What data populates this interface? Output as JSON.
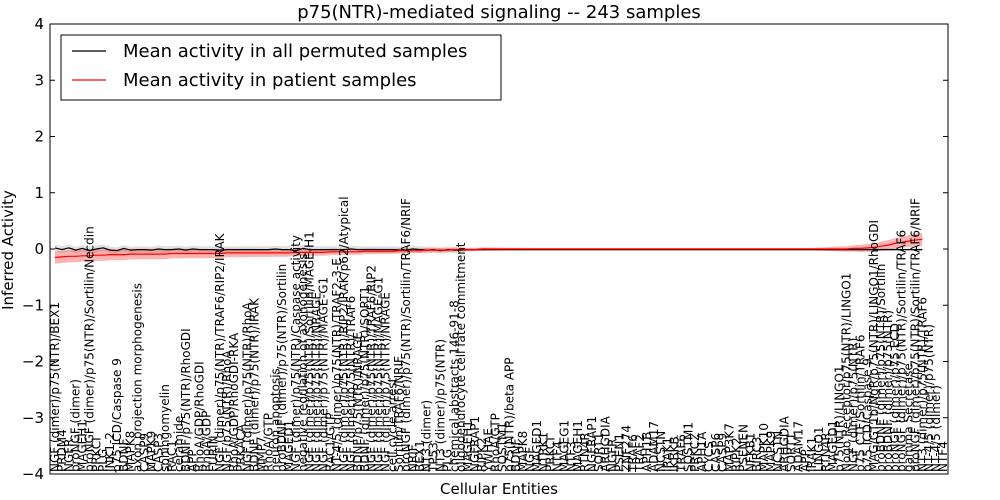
{
  "chart_data": {
    "type": "line",
    "title": "p75(NTR)-mediated signaling -- 243 samples",
    "xlabel": "Cellular Entities",
    "ylabel": "Inferred Activity",
    "ylim": [
      -4,
      4
    ],
    "yticks": [
      "−4",
      "−3",
      "−2",
      "−1",
      "0",
      "1",
      "2",
      "3",
      "4"
    ],
    "grid": false,
    "legend": {
      "placement": "top-left",
      "entries": [
        {
          "label": "Mean activity in all permuted samples",
          "color": "#000000"
        },
        {
          "label": "Mean activity in patient samples",
          "color": "#ff0000"
        }
      ]
    },
    "colors": {
      "permuted": "#000000",
      "patient": "#ff0000",
      "patient_band": "#ff0000",
      "permuted_band": "#9a9a9a"
    },
    "categories": [
      "NGF (dimer)/p75(NTR)/BEX1",
      "PRDM4",
      "NGFR",
      "proNGF (dimer)",
      "MAGEH1",
      "proNGF (dimer)/p75(NTR)/Sortilin/Necdin",
      "PRKCI",
      "PLG",
      "JNK1-2",
      "p75 ICD/Caspase 9",
      "BDNF",
      "MAPK8",
      "axon projection morphogenesis",
      "CASP9",
      "MAPK9",
      "CASP3",
      "sphingomyelin",
      "RAC1",
      "ceramide",
      "BDNF/p75(NTR)/RhoGDI",
      "APP",
      "RhoA/GDP/RhoGDI",
      "RhoA/GDP",
      "FURIN",
      "NGF (dimer)/p75(NTR)/TRAF6/RIP2/IRAK",
      "NGF/p75(NTR)/RhoA",
      "RhoA/GDP/RhoGDI-RKA",
      "PRKACA",
      "NGF (dimer)/p75(NTR)/RhoA",
      "BDNF (dimer)/p75(NTR)/IRAK",
      "MMP7",
      "RhoA/GTP",
      "neuron apoptosis",
      "proBDNF (dimer)/p75(NTR)/Sortilin",
      "MAGED1",
      "NGF (dimer)/p75(NTR)/Caspase activity",
      "negative regulation of axonogenesis",
      "NGF (dimer)/p75(NTR)/Sortilin/MAGE-H1",
      "NGF (dimer)/p75(NTR)/NRAGE",
      "NGF (dimer)/p75(NTR)/MAGE-G1",
      "RAC1/GTP",
      "NT-4/5 (dimer)/p75(NTR)/TRAF2-3-E",
      "NGF (dimer)/p75(NTR)/RIP2/IRAK/p62/Atypical",
      "NGF (dimer)/p75(NTR)/TRAF6",
      "BDNF/p75(NTR)/NRAGE",
      "BDNF (dimer)/p75(NTR)/SORT1",
      "NGF (dimer)/p75(NTR)/TRAF6/RIP2",
      "NGF (dimer)/p75(NTR)/MAGE-G1",
      "NGF (dimer)/p75(NTR)/NRAGE",
      "cell cycle arrest",
      "Sortilin/TRAF6/NRIF",
      "proNGF (dimer)/p75(NTR)/Sortilin/TRAF6/NRIF",
      "NRIF",
      "BEX1",
      "NT3 (dimer)",
      "TP53",
      "NT3 (dimer)/p75(NTR)",
      "PLG",
      "chemical abstracts 146-91-8",
      "oligodendrocyte cell fate commitment",
      "MAGEH1",
      "NGFRAP1",
      "RIPK2",
      "YWHAE",
      "RhoA/GTP",
      "SQSTM1",
      "p75(NTR)/beta APP",
      "BDNF",
      "MAPK8",
      "NGF",
      "MAGED1",
      "NTRK1",
      "PRKCI",
      "NTF4",
      "MAGEG1",
      "NTF3",
      "MAGEH1",
      "RTN4R",
      "NGFRAP1",
      "SORT1",
      "ARHGDIA",
      "NGFR",
      "PSEN1",
      "ZNF274",
      "TRAF6",
      "TRAF2",
      "APH1B",
      "ADAM17",
      "NCSTN",
      "IRAK1",
      "IKBKB",
      "TRAF6",
      "SQSTM1",
      "PRKCZ",
      "APH1A",
      "CYCS",
      "CASP6",
      "CASP9",
      "MAP3K7",
      "RIPK2",
      "PSENEN",
      "NFKB1",
      "BIRC3",
      "MAPK10",
      "MAPK9",
      "NCSTN",
      "ARHGDIA",
      "SORT1",
      "ADAM17",
      "APP",
      "IRAK1",
      "LINGO1",
      "RTN4R",
      "MAGED1",
      "p75(NTR)/LINGO1",
      "Nogo Receptor/p75(NTR)/LINGO1",
      "NGF (dimer)/p75(NTR)",
      "p75 CTF/Sortilin/TRAF6",
      "p75 ICD/Caspase 9",
      "MAG/GT1b/NgR/p75(NTR)/LINGO1/RhoGDI",
      "proBDNF (dimer)/p75(NTR)/Sortilin",
      "proBDNF (dimer)/p75(NTR)",
      "proNGF (dimer)/p75 ECD",
      "proNGF (dimer)/p75(NTR)/Sortilin/TRAF6",
      "gamma Secretase",
      "proNGF (dimer)/p75(NTR)/Sortilin/TRAF6/NRIF",
      "NT3 (dimer)/p75(NTR)/TRAF6",
      "NT-4/5 (dimer)/p75(NTR)",
      "NT-4/5 (dimer)",
      "NTF4"
    ],
    "permuted_mean": [
      0.02,
      -0.01,
      0.02,
      -0.02,
      0.01,
      -0.03,
      0.0,
      0.02,
      -0.02,
      -0.03,
      0.01,
      -0.02,
      -0.01,
      -0.01,
      -0.02,
      0.0,
      -0.01,
      -0.01,
      0.0,
      -0.02,
      0.0,
      -0.01,
      -0.01,
      -0.01,
      -0.02,
      -0.01,
      -0.01,
      -0.01,
      -0.01,
      -0.01,
      -0.01,
      -0.01,
      0.0,
      -0.01,
      -0.01,
      -0.03,
      0.01,
      -0.01,
      -0.01,
      -0.01,
      -0.01,
      -0.01,
      -0.01,
      0.0,
      -0.01,
      -0.01,
      -0.01,
      -0.01,
      -0.01,
      -0.01,
      -0.02,
      -0.02,
      0.0,
      -0.01,
      -0.02,
      -0.01,
      -0.03,
      -0.01,
      -0.02,
      -0.02,
      -0.01,
      -0.01,
      -0.01,
      -0.01,
      -0.01,
      -0.01,
      -0.01,
      -0.01,
      -0.01,
      -0.01,
      -0.01,
      -0.01,
      -0.01,
      -0.01,
      -0.01,
      -0.01,
      -0.01,
      -0.01,
      -0.01,
      -0.01,
      -0.01,
      -0.01,
      -0.01,
      -0.01,
      -0.01,
      -0.01,
      -0.01,
      -0.01,
      -0.01,
      -0.01,
      -0.01,
      -0.01,
      -0.01,
      -0.01,
      -0.01,
      -0.01,
      -0.01,
      -0.01,
      -0.01,
      -0.01,
      -0.01,
      -0.01,
      -0.01,
      -0.01,
      -0.01,
      -0.01,
      -0.01,
      -0.01,
      -0.01,
      -0.01,
      -0.01,
      -0.01,
      -0.01,
      -0.01,
      -0.01,
      -0.01,
      -0.01,
      -0.01,
      -0.01,
      -0.01,
      -0.01,
      -0.01,
      -0.01,
      -0.01,
      -0.01,
      -0.01,
      -0.01
    ],
    "patient_mean": [
      -0.15,
      -0.14,
      -0.13,
      -0.13,
      -0.12,
      -0.12,
      -0.11,
      -0.11,
      -0.1,
      -0.1,
      -0.1,
      -0.09,
      -0.09,
      -0.09,
      -0.09,
      -0.09,
      -0.09,
      -0.08,
      -0.08,
      -0.08,
      -0.08,
      -0.08,
      -0.08,
      -0.08,
      -0.08,
      -0.07,
      -0.07,
      -0.07,
      -0.07,
      -0.07,
      -0.07,
      -0.07,
      -0.07,
      -0.07,
      -0.07,
      -0.06,
      -0.06,
      -0.06,
      -0.06,
      -0.06,
      -0.05,
      -0.05,
      -0.05,
      -0.05,
      -0.05,
      -0.04,
      -0.04,
      -0.04,
      -0.04,
      -0.04,
      -0.03,
      -0.03,
      -0.03,
      -0.03,
      -0.02,
      -0.02,
      -0.02,
      -0.02,
      -0.01,
      -0.01,
      -0.01,
      -0.01,
      0.0,
      0.0,
      0.0,
      0.0,
      0.0,
      0.0,
      0.0,
      0.0,
      0.0,
      0.0,
      0.0,
      0.0,
      0.0,
      0.0,
      0.0,
      0.0,
      0.0,
      0.0,
      0.0,
      0.0,
      0.0,
      0.0,
      0.0,
      0.0,
      0.0,
      0.0,
      0.0,
      0.0,
      0.0,
      0.0,
      0.0,
      0.0,
      0.0,
      0.0,
      0.0,
      0.0,
      0.0,
      0.0,
      0.0,
      0.0,
      0.0,
      0.0,
      0.0,
      0.0,
      0.0,
      0.0,
      0.0,
      0.0,
      0.0,
      0.0,
      0.0,
      0.0,
      0.0,
      0.0,
      0.01,
      0.01,
      0.02,
      0.03,
      0.05,
      0.07,
      0.1,
      0.12,
      0.14,
      0.16,
      0.17
    ]
  }
}
